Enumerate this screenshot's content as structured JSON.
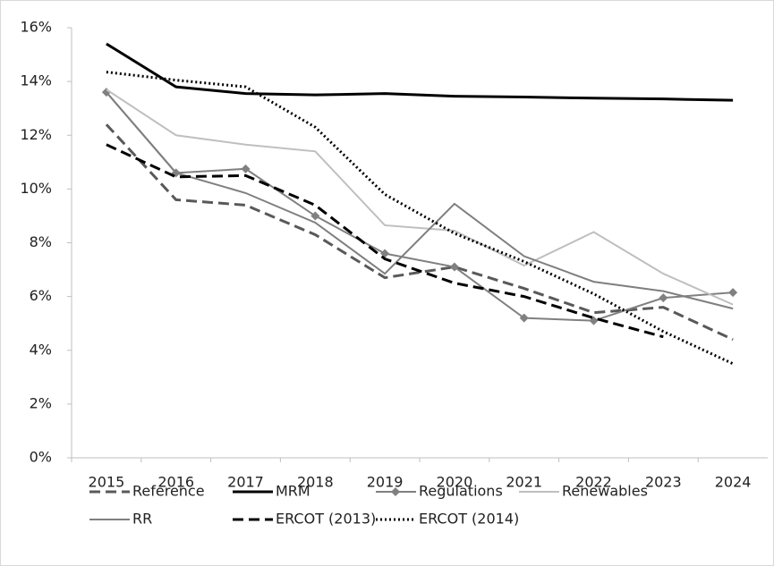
{
  "chart_data": {
    "type": "line",
    "categories": [
      "2015",
      "2016",
      "2017",
      "2018",
      "2019",
      "2020",
      "2021",
      "2022",
      "2023",
      "2024"
    ],
    "ylim": [
      0,
      16
    ],
    "yticks": [
      {
        "value": 0,
        "label": "0%"
      },
      {
        "value": 2,
        "label": "2%"
      },
      {
        "value": 4,
        "label": "4%"
      },
      {
        "value": 6,
        "label": "6%"
      },
      {
        "value": 8,
        "label": "8%"
      },
      {
        "value": 10,
        "label": "10%"
      },
      {
        "value": 12,
        "label": "12%"
      },
      {
        "value": 14,
        "label": "14%"
      },
      {
        "value": 16,
        "label": "16%"
      }
    ],
    "grid": false,
    "legend": "bottom",
    "series": [
      {
        "name": "Reference",
        "color": "#595959",
        "dash": "dashed",
        "values": [
          12.4,
          9.6,
          9.4,
          8.3,
          6.7,
          7.1,
          6.3,
          5.4,
          5.6,
          4.4
        ]
      },
      {
        "name": "MRM",
        "color": "#000000",
        "dash": "solid",
        "values": [
          15.4,
          13.8,
          13.55,
          13.5,
          13.55,
          13.45,
          13.42,
          13.38,
          13.35,
          13.3
        ]
      },
      {
        "name": "Regulations",
        "color": "#808080",
        "dash": "solid",
        "marker": "diamond",
        "values": [
          13.6,
          10.6,
          10.75,
          9.0,
          7.6,
          7.1,
          5.2,
          5.1,
          5.95,
          6.15
        ]
      },
      {
        "name": "Renewables",
        "color": "#bfbfbf",
        "dash": "solid",
        "values": [
          13.7,
          12.0,
          11.65,
          11.4,
          8.65,
          8.45,
          7.15,
          8.4,
          6.85,
          5.7
        ]
      },
      {
        "name": "RR",
        "color": "#7f7f7f",
        "dash": "solid",
        "values": [
          13.6,
          10.6,
          9.85,
          8.75,
          6.85,
          9.45,
          7.5,
          6.55,
          6.2,
          5.55
        ]
      },
      {
        "name": "ERCOT (2013)",
        "color": "#000000",
        "dash": "dashed",
        "values": [
          11.65,
          10.45,
          10.5,
          9.4,
          7.4,
          6.5,
          6.0,
          5.2,
          4.5,
          null
        ]
      },
      {
        "name": "ERCOT (2014)",
        "color": "#000000",
        "dash": "dotted",
        "values": [
          14.35,
          14.05,
          13.8,
          12.3,
          9.8,
          8.35,
          7.3,
          6.1,
          4.7,
          3.5
        ]
      }
    ]
  }
}
